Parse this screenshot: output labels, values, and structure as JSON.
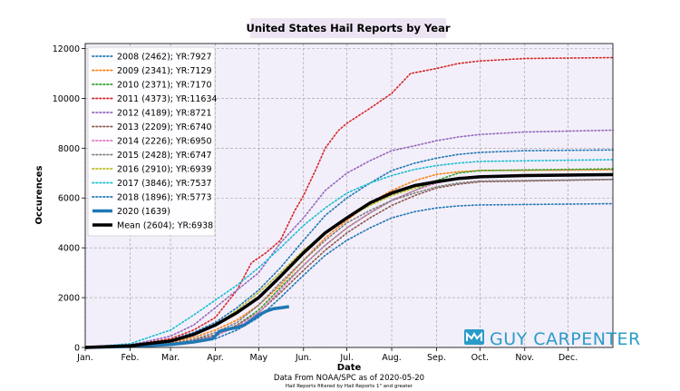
{
  "chart_data": {
    "type": "line",
    "title": "United States Hail Reports by Year",
    "xlabel": "Date",
    "ylabel": "Occurences",
    "xlim": [
      0,
      365
    ],
    "ylim": [
      0,
      12200
    ],
    "x_ticks": [
      {
        "day": 0,
        "label": "Jan."
      },
      {
        "day": 31,
        "label": "Feb."
      },
      {
        "day": 59,
        "label": "Mar."
      },
      {
        "day": 90,
        "label": "Apr."
      },
      {
        "day": 120,
        "label": "May"
      },
      {
        "day": 151,
        "label": "Jun."
      },
      {
        "day": 181,
        "label": "Jul."
      },
      {
        "day": 212,
        "label": "Aug."
      },
      {
        "day": 243,
        "label": "Sep."
      },
      {
        "day": 273,
        "label": "Oct."
      },
      {
        "day": 304,
        "label": "Nov."
      },
      {
        "day": 334,
        "label": "Dec."
      }
    ],
    "y_ticks": [
      0,
      2000,
      4000,
      6000,
      8000,
      10000,
      12000
    ],
    "grid": true,
    "legend_position": "top-left",
    "footnote": "Data From NOAA/SPC as of 2020-05-20",
    "footnote_small": "Hail Reports filtered by Hail Reports 1\" and greater",
    "brand": "GUY CARPENTER",
    "series": [
      {
        "name": "2008 (2462); YR:7927",
        "color": "#1f77b4",
        "style": "dotted",
        "points": [
          [
            0,
            0
          ],
          [
            31,
            80
          ],
          [
            59,
            300
          ],
          [
            75,
            600
          ],
          [
            90,
            1000
          ],
          [
            105,
            1600
          ],
          [
            120,
            2300
          ],
          [
            135,
            3200
          ],
          [
            151,
            4300
          ],
          [
            166,
            5300
          ],
          [
            181,
            6000
          ],
          [
            197,
            6600
          ],
          [
            212,
            7100
          ],
          [
            228,
            7400
          ],
          [
            243,
            7600
          ],
          [
            258,
            7750
          ],
          [
            273,
            7830
          ],
          [
            304,
            7900
          ],
          [
            365,
            7927
          ]
        ]
      },
      {
        "name": "2009 (2341); YR:7129",
        "color": "#ff7f0e",
        "style": "dotted",
        "points": [
          [
            0,
            0
          ],
          [
            31,
            60
          ],
          [
            59,
            200
          ],
          [
            75,
            400
          ],
          [
            90,
            700
          ],
          [
            105,
            1100
          ],
          [
            120,
            1700
          ],
          [
            135,
            2500
          ],
          [
            151,
            3500
          ],
          [
            166,
            4400
          ],
          [
            181,
            5100
          ],
          [
            197,
            5800
          ],
          [
            212,
            6300
          ],
          [
            228,
            6700
          ],
          [
            243,
            6950
          ],
          [
            258,
            7050
          ],
          [
            273,
            7100
          ],
          [
            365,
            7129
          ]
        ]
      },
      {
        "name": "2010 (2371); YR:7170",
        "color": "#2ca02c",
        "style": "dotted",
        "points": [
          [
            0,
            0
          ],
          [
            31,
            40
          ],
          [
            59,
            150
          ],
          [
            75,
            300
          ],
          [
            90,
            500
          ],
          [
            105,
            900
          ],
          [
            120,
            1500
          ],
          [
            135,
            2400
          ],
          [
            151,
            3300
          ],
          [
            166,
            4100
          ],
          [
            181,
            4800
          ],
          [
            197,
            5400
          ],
          [
            212,
            5900
          ],
          [
            228,
            6300
          ],
          [
            243,
            6700
          ],
          [
            258,
            7000
          ],
          [
            273,
            7100
          ],
          [
            365,
            7170
          ]
        ]
      },
      {
        "name": "2011 (4373); YR:11634",
        "color": "#d62728",
        "style": "dotted",
        "points": [
          [
            0,
            0
          ],
          [
            31,
            100
          ],
          [
            59,
            350
          ],
          [
            75,
            700
          ],
          [
            90,
            1200
          ],
          [
            105,
            2300
          ],
          [
            115,
            3400
          ],
          [
            125,
            3800
          ],
          [
            135,
            4300
          ],
          [
            145,
            5500
          ],
          [
            151,
            6100
          ],
          [
            160,
            7200
          ],
          [
            166,
            8000
          ],
          [
            175,
            8700
          ],
          [
            181,
            9000
          ],
          [
            197,
            9600
          ],
          [
            212,
            10200
          ],
          [
            225,
            11000
          ],
          [
            243,
            11200
          ],
          [
            258,
            11400
          ],
          [
            273,
            11500
          ],
          [
            304,
            11600
          ],
          [
            365,
            11634
          ]
        ]
      },
      {
        "name": "2012 (4189); YR:8721",
        "color": "#9467bd",
        "style": "dotted",
        "points": [
          [
            0,
            0
          ],
          [
            31,
            100
          ],
          [
            59,
            450
          ],
          [
            75,
            900
          ],
          [
            90,
            1600
          ],
          [
            105,
            2300
          ],
          [
            120,
            3000
          ],
          [
            135,
            4200
          ],
          [
            151,
            5200
          ],
          [
            166,
            6300
          ],
          [
            181,
            7000
          ],
          [
            197,
            7500
          ],
          [
            212,
            7900
          ],
          [
            228,
            8100
          ],
          [
            243,
            8300
          ],
          [
            258,
            8450
          ],
          [
            273,
            8550
          ],
          [
            304,
            8650
          ],
          [
            365,
            8721
          ]
        ]
      },
      {
        "name": "2013 (2209); YR:6740",
        "color": "#8c564b",
        "style": "dotted",
        "points": [
          [
            0,
            0
          ],
          [
            31,
            50
          ],
          [
            59,
            150
          ],
          [
            75,
            300
          ],
          [
            90,
            500
          ],
          [
            105,
            900
          ],
          [
            120,
            1400
          ],
          [
            135,
            2200
          ],
          [
            151,
            3100
          ],
          [
            166,
            3900
          ],
          [
            181,
            4600
          ],
          [
            197,
            5200
          ],
          [
            212,
            5700
          ],
          [
            228,
            6100
          ],
          [
            243,
            6400
          ],
          [
            258,
            6550
          ],
          [
            273,
            6650
          ],
          [
            365,
            6740
          ]
        ]
      },
      {
        "name": "2014 (2226); YR:6950",
        "color": "#e377c2",
        "style": "dotted",
        "points": [
          [
            0,
            0
          ],
          [
            31,
            40
          ],
          [
            59,
            120
          ],
          [
            75,
            250
          ],
          [
            90,
            450
          ],
          [
            105,
            850
          ],
          [
            120,
            1400
          ],
          [
            135,
            2300
          ],
          [
            151,
            3300
          ],
          [
            166,
            4100
          ],
          [
            181,
            4800
          ],
          [
            197,
            5400
          ],
          [
            212,
            5900
          ],
          [
            228,
            6300
          ],
          [
            243,
            6600
          ],
          [
            258,
            6800
          ],
          [
            273,
            6880
          ],
          [
            365,
            6950
          ]
        ]
      },
      {
        "name": "2015 (2428); YR:6747",
        "color": "#7f7f7f",
        "style": "dotted",
        "points": [
          [
            0,
            0
          ],
          [
            31,
            50
          ],
          [
            59,
            160
          ],
          [
            75,
            320
          ],
          [
            90,
            600
          ],
          [
            105,
            1000
          ],
          [
            120,
            1700
          ],
          [
            135,
            2600
          ],
          [
            151,
            3500
          ],
          [
            166,
            4300
          ],
          [
            181,
            5000
          ],
          [
            197,
            5500
          ],
          [
            212,
            5900
          ],
          [
            228,
            6200
          ],
          [
            243,
            6450
          ],
          [
            258,
            6600
          ],
          [
            273,
            6680
          ],
          [
            365,
            6747
          ]
        ]
      },
      {
        "name": "2016 (2910); YR:6939",
        "color": "#bcbd22",
        "style": "dotted",
        "points": [
          [
            0,
            0
          ],
          [
            31,
            60
          ],
          [
            59,
            250
          ],
          [
            75,
            500
          ],
          [
            90,
            900
          ],
          [
            105,
            1500
          ],
          [
            120,
            2200
          ],
          [
            135,
            3000
          ],
          [
            151,
            3900
          ],
          [
            166,
            4600
          ],
          [
            181,
            5200
          ],
          [
            197,
            5700
          ],
          [
            212,
            6100
          ],
          [
            228,
            6400
          ],
          [
            243,
            6650
          ],
          [
            258,
            6800
          ],
          [
            273,
            6870
          ],
          [
            365,
            6939
          ]
        ]
      },
      {
        "name": "2017 (3846); YR:7537",
        "color": "#17becf",
        "style": "dotted",
        "points": [
          [
            0,
            0
          ],
          [
            31,
            150
          ],
          [
            59,
            700
          ],
          [
            75,
            1300
          ],
          [
            90,
            1900
          ],
          [
            105,
            2500
          ],
          [
            120,
            3200
          ],
          [
            135,
            4000
          ],
          [
            151,
            4900
          ],
          [
            166,
            5600
          ],
          [
            181,
            6200
          ],
          [
            197,
            6600
          ],
          [
            212,
            6900
          ],
          [
            228,
            7150
          ],
          [
            243,
            7300
          ],
          [
            258,
            7400
          ],
          [
            273,
            7470
          ],
          [
            365,
            7537
          ]
        ]
      },
      {
        "name": "2018 (1896); YR:5773",
        "color": "#1f77b4",
        "style": "dotted",
        "points": [
          [
            0,
            0
          ],
          [
            31,
            30
          ],
          [
            59,
            100
          ],
          [
            75,
            200
          ],
          [
            90,
            350
          ],
          [
            105,
            700
          ],
          [
            120,
            1200
          ],
          [
            135,
            2000
          ],
          [
            151,
            2900
          ],
          [
            166,
            3700
          ],
          [
            181,
            4300
          ],
          [
            197,
            4800
          ],
          [
            212,
            5200
          ],
          [
            228,
            5450
          ],
          [
            243,
            5600
          ],
          [
            258,
            5680
          ],
          [
            273,
            5720
          ],
          [
            365,
            5773
          ]
        ]
      },
      {
        "name": "2020 (1639)",
        "color": "#1f77b4",
        "style": "solid-thick",
        "points": [
          [
            0,
            0
          ],
          [
            31,
            40
          ],
          [
            59,
            120
          ],
          [
            75,
            220
          ],
          [
            88,
            350
          ],
          [
            93,
            650
          ],
          [
            100,
            750
          ],
          [
            105,
            800
          ],
          [
            110,
            900
          ],
          [
            115,
            1100
          ],
          [
            120,
            1300
          ],
          [
            125,
            1450
          ],
          [
            130,
            1550
          ],
          [
            136,
            1600
          ],
          [
            141,
            1639
          ]
        ]
      },
      {
        "name": "Mean (2604); YR:6938",
        "color": "#000000",
        "style": "solid-thick",
        "points": [
          [
            0,
            0
          ],
          [
            31,
            70
          ],
          [
            59,
            260
          ],
          [
            75,
            520
          ],
          [
            90,
            900
          ],
          [
            105,
            1400
          ],
          [
            120,
            2000
          ],
          [
            135,
            2850
          ],
          [
            151,
            3800
          ],
          [
            166,
            4600
          ],
          [
            181,
            5200
          ],
          [
            197,
            5800
          ],
          [
            212,
            6200
          ],
          [
            228,
            6500
          ],
          [
            243,
            6650
          ],
          [
            258,
            6780
          ],
          [
            273,
            6850
          ],
          [
            304,
            6900
          ],
          [
            365,
            6938
          ]
        ]
      }
    ]
  }
}
